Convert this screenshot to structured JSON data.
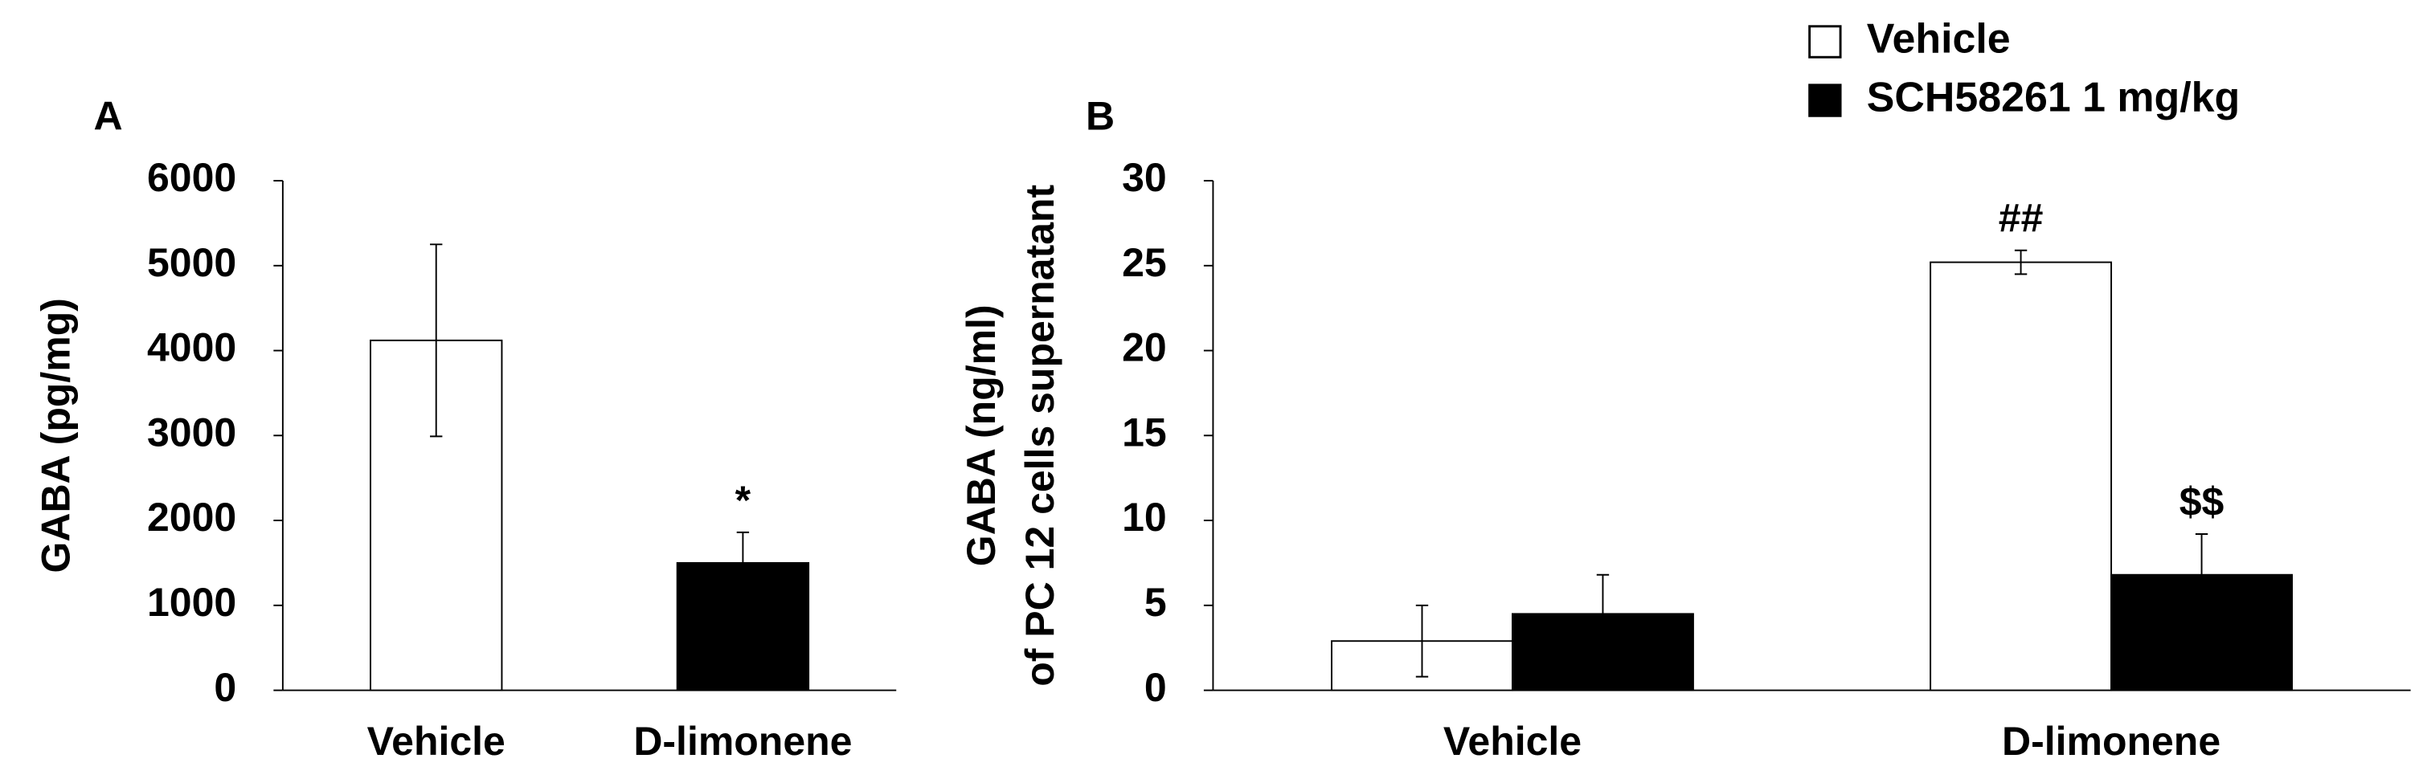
{
  "chart_data": [
    {
      "type": "bar",
      "panel_label": "A",
      "ylabel": "GABA (pg/mg)",
      "categories": [
        "Vehicle",
        "D-limonene"
      ],
      "values": [
        4120,
        1500
      ],
      "errors": [
        1130,
        360
      ],
      "colors": [
        "#ffffff",
        "#000000"
      ],
      "edgecolor": "#000000",
      "value_annotations": [
        null,
        "*"
      ],
      "ylim": [
        0,
        6000
      ],
      "yticks": [
        0,
        1000,
        2000,
        3000,
        4000,
        5000,
        6000
      ]
    },
    {
      "type": "grouped_bar",
      "panel_label": "B",
      "ylabel": [
        "GABA (ng/ml)",
        "of PC 12 cells supernatant"
      ],
      "categories": [
        "Vehicle",
        "D-limonene"
      ],
      "series": [
        {
          "name": "Vehicle",
          "color": "#ffffff",
          "values": [
            2.9,
            25.2
          ],
          "errors": [
            2.1,
            0.7
          ],
          "annotations": [
            null,
            "##"
          ]
        },
        {
          "name": "SCH58261 1 mg/kg",
          "color": "#000000",
          "values": [
            4.5,
            6.8
          ],
          "errors": [
            2.3,
            2.4
          ],
          "annotations": [
            null,
            "$$"
          ]
        }
      ],
      "edgecolor": "#000000",
      "legend": "top-right",
      "ylim": [
        0,
        30
      ],
      "yticks": [
        0,
        5,
        10,
        15,
        20,
        25,
        30
      ]
    }
  ]
}
